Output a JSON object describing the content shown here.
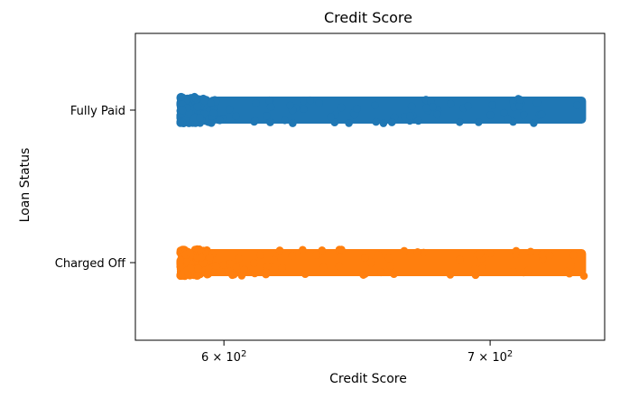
{
  "chart_data": {
    "type": "scatter",
    "variant": "stripplot",
    "title": "Credit Score",
    "xlabel": "Credit Score",
    "ylabel": "Loan Status",
    "x_scale": "log",
    "xlim": [
      570,
      748
    ],
    "x_ticks": [
      {
        "value": 600,
        "label_base": "6",
        "label_mid": " × 10",
        "label_exp": "2"
      },
      {
        "value": 700,
        "label_base": "7",
        "label_mid": " × 10",
        "label_exp": "2"
      }
    ],
    "categories": [
      "Fully Paid",
      "Charged Off"
    ],
    "legend": "none",
    "grid": false,
    "series": [
      {
        "category": "Fully Paid",
        "color": "#1f77b4",
        "x_min": 585,
        "x_max": 740,
        "dense_start": 596
      },
      {
        "category": "Charged Off",
        "color": "#ff7f0e",
        "x_min": 585,
        "x_max": 740,
        "dense_start": 594
      }
    ]
  }
}
